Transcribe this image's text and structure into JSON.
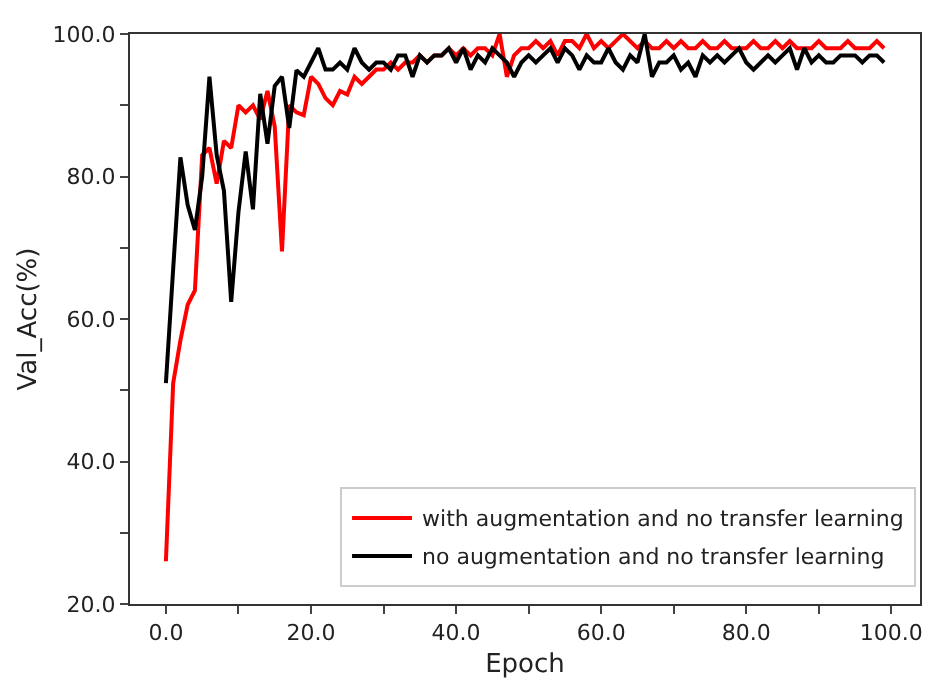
{
  "chart_data": {
    "type": "line",
    "xlabel": "Epoch",
    "ylabel": "Val_Acc(%)",
    "xlim": [
      -4.95,
      103.95
    ],
    "ylim": [
      20,
      100
    ],
    "xticks": [
      {
        "value": 0,
        "label": "0.0"
      },
      {
        "value": 10,
        "label": null
      },
      {
        "value": 20,
        "label": "20.0"
      },
      {
        "value": 30,
        "label": null
      },
      {
        "value": 40,
        "label": "40.0"
      },
      {
        "value": 50,
        "label": null
      },
      {
        "value": 60,
        "label": "60.0"
      },
      {
        "value": 70,
        "label": null
      },
      {
        "value": 80,
        "label": "80.0"
      },
      {
        "value": 90,
        "label": null
      },
      {
        "value": 100,
        "label": "100.0"
      }
    ],
    "yticks": [
      {
        "value": 20,
        "label": "20.0"
      },
      {
        "value": 30,
        "label": null
      },
      {
        "value": 40,
        "label": "40.0"
      },
      {
        "value": 50,
        "label": null
      },
      {
        "value": 60,
        "label": "60.0"
      },
      {
        "value": 70,
        "label": null
      },
      {
        "value": 80,
        "label": "80.0"
      },
      {
        "value": 90,
        "label": null
      },
      {
        "value": 100,
        "label": "100.0"
      }
    ],
    "x": [
      0,
      1,
      2,
      3,
      4,
      5,
      6,
      7,
      8,
      9,
      10,
      11,
      12,
      13,
      14,
      15,
      16,
      17,
      18,
      19,
      20,
      21,
      22,
      23,
      24,
      25,
      26,
      27,
      28,
      29,
      30,
      31,
      32,
      33,
      34,
      35,
      36,
      37,
      38,
      39,
      40,
      41,
      42,
      43,
      44,
      45,
      46,
      47,
      48,
      49,
      50,
      51,
      52,
      53,
      54,
      55,
      56,
      57,
      58,
      59,
      60,
      61,
      62,
      63,
      64,
      65,
      66,
      67,
      68,
      69,
      70,
      71,
      72,
      73,
      74,
      75,
      76,
      77,
      78,
      79,
      80,
      81,
      82,
      83,
      84,
      85,
      86,
      87,
      88,
      89,
      90,
      91,
      92,
      93,
      94,
      95,
      96,
      97,
      98,
      99
    ],
    "legend": "bottom right",
    "marker": "none",
    "line_style": "solid",
    "series": [
      {
        "name": "with augmentation and no transfer learning",
        "color": "#ff0000",
        "values": [
          26,
          51,
          57,
          62,
          64,
          83,
          84,
          79,
          85,
          84,
          90,
          89,
          90,
          88,
          92,
          87,
          69.5,
          90,
          89,
          88.6,
          94,
          93,
          91,
          90,
          92,
          91.5,
          94,
          93,
          94,
          95,
          95,
          96,
          95,
          96,
          96,
          97,
          96,
          97,
          97,
          98,
          97,
          98,
          97,
          98,
          98,
          97,
          100,
          94,
          97,
          98,
          98,
          99,
          98,
          99,
          97,
          99,
          99,
          98,
          100,
          98,
          99,
          98,
          99,
          100,
          99,
          98,
          99,
          98,
          98,
          99,
          98,
          99,
          98,
          98,
          99,
          98,
          98,
          99,
          98,
          98,
          98,
          99,
          98,
          98,
          99,
          98,
          99,
          98,
          98,
          98,
          99,
          98,
          98,
          98,
          99,
          98,
          98,
          98,
          99,
          98
        ]
      },
      {
        "name": "no augmentation and no transfer learning",
        "color": "#000000",
        "values": [
          51,
          67,
          82.7,
          76,
          72.5,
          80,
          94,
          83,
          78,
          62.4,
          75,
          83.5,
          75.4,
          91.6,
          84.6,
          92.7,
          94,
          86.8,
          94.9,
          94,
          96,
          98,
          95,
          95,
          96,
          95,
          98,
          96,
          95,
          96,
          96,
          95,
          97,
          97,
          94,
          97,
          96,
          97,
          97,
          98,
          96,
          98,
          95,
          97,
          96,
          98,
          97,
          96,
          94,
          96,
          97,
          96,
          97,
          98,
          96,
          98,
          97,
          95,
          97,
          96,
          96,
          98,
          96,
          95,
          97,
          96,
          100,
          94,
          96,
          96,
          97,
          95,
          96,
          94,
          97,
          96,
          97,
          96,
          97,
          98,
          96,
          95,
          96,
          97,
          96,
          97,
          98,
          95,
          98,
          96,
          97,
          96,
          96,
          97,
          97,
          97,
          96,
          97,
          97,
          96
        ]
      }
    ]
  }
}
